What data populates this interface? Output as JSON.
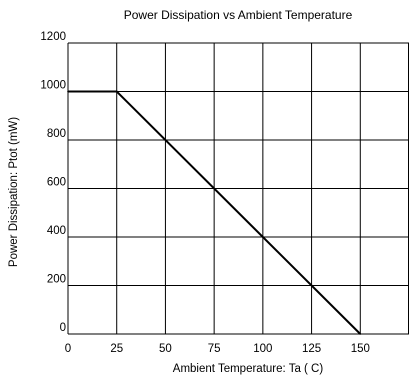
{
  "chart_data": {
    "type": "line",
    "title": "Power Dissipation vs Ambient Temperature",
    "xlabel": "Ambient Temperature: Ta ( C)",
    "ylabel": "Power Dissipation: Ptot (mW)",
    "xlim": [
      0,
      175
    ],
    "ylim": [
      0,
      1200
    ],
    "x_ticks": [
      0,
      25,
      50,
      75,
      100,
      125,
      150
    ],
    "y_ticks": [
      0,
      200,
      400,
      600,
      800,
      1000,
      1200
    ],
    "x_tick_labels": [
      "0",
      "25",
      "50",
      "75",
      "100",
      "125",
      "150"
    ],
    "y_tick_labels": [
      "0",
      "200",
      "400",
      "600",
      "800",
      "1000",
      "1200"
    ],
    "grid": true,
    "series": [
      {
        "x": [
          0,
          25,
          150
        ],
        "y": [
          1000,
          1000,
          0
        ]
      }
    ],
    "colors": {
      "line": "#000000",
      "grid": "#000000"
    }
  }
}
